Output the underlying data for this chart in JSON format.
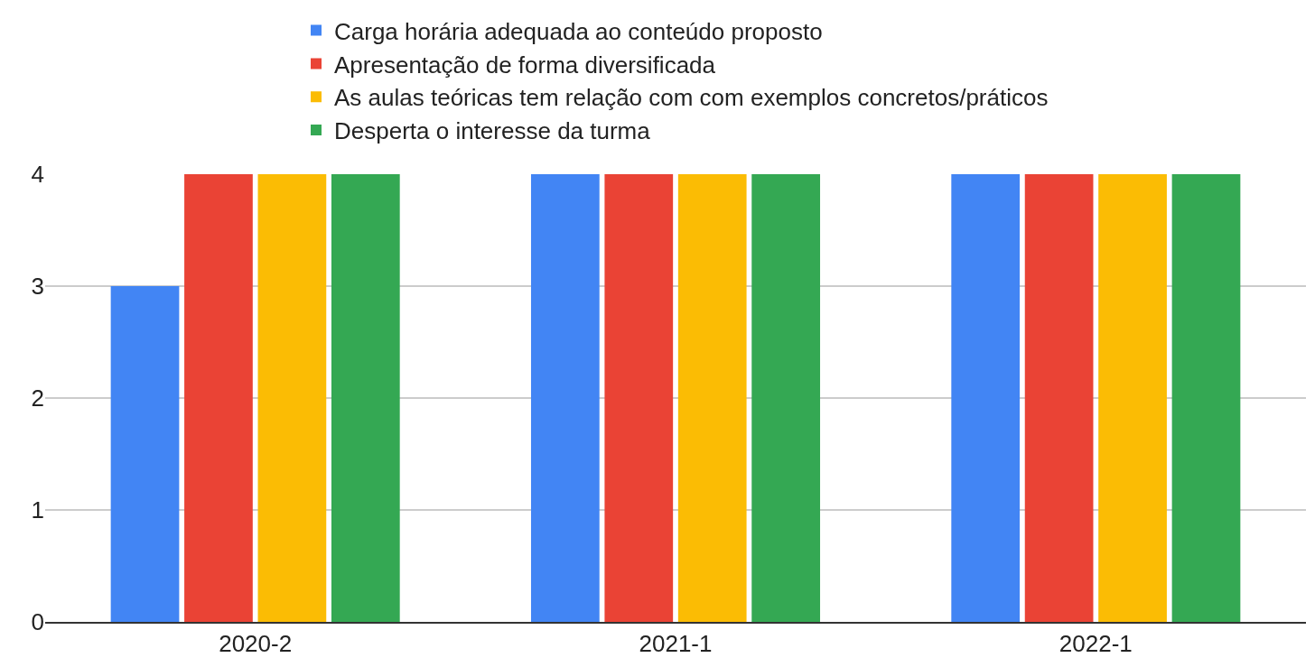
{
  "chart_data": {
    "type": "bar",
    "categories": [
      "2020-2",
      "2021-1",
      "2022-1"
    ],
    "series": [
      {
        "name": "Carga horária adequada ao conteúdo proposto",
        "color": "#4285f4",
        "values": [
          3,
          4,
          4
        ]
      },
      {
        "name": "Apresentação de forma diversificada",
        "color": "#ea4335",
        "values": [
          4,
          4,
          4
        ]
      },
      {
        "name": "As aulas teóricas tem relação com com exemplos concretos/práticos",
        "color": "#fbbc04",
        "values": [
          4,
          4,
          4
        ]
      },
      {
        "name": "Desperta o interesse da turma",
        "color": "#34a853",
        "values": [
          4,
          4,
          4
        ]
      }
    ],
    "ylim": [
      0,
      4
    ],
    "yticks": [
      0,
      1,
      2,
      3,
      4
    ],
    "grid": "y",
    "legend": "top"
  }
}
